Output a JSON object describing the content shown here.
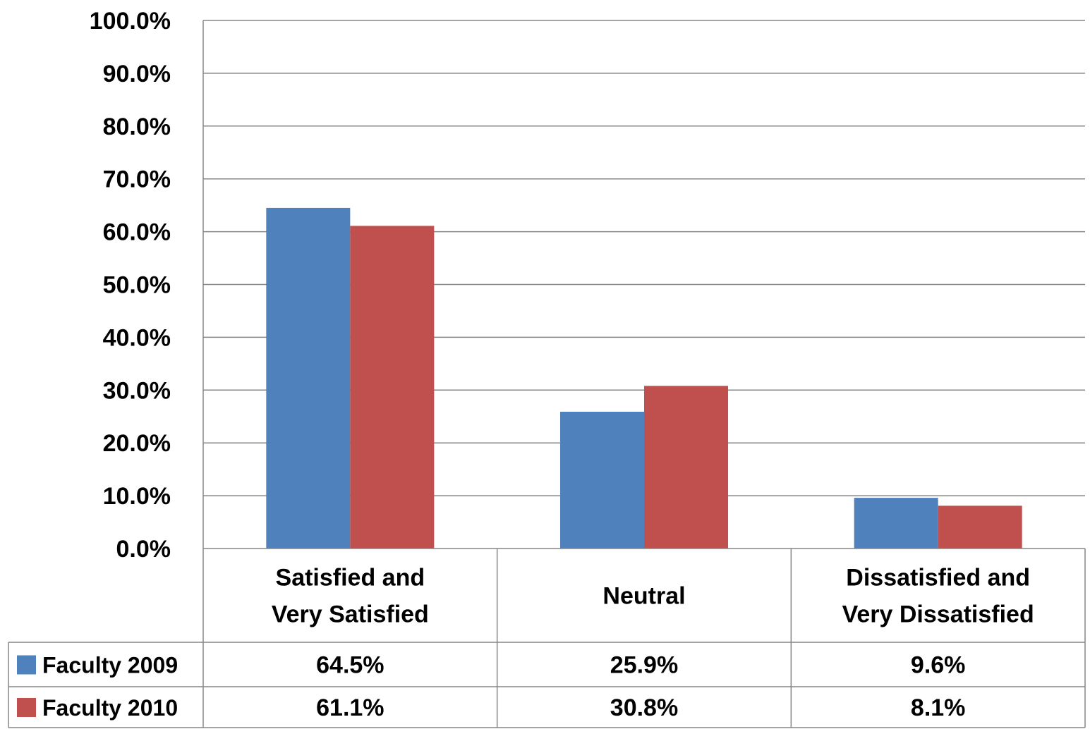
{
  "chart_data": {
    "type": "bar",
    "categories": [
      [
        "Satisfied and",
        "Very Satisfied"
      ],
      [
        "Neutral"
      ],
      [
        "Dissatisfied and",
        "Very Dissatisfied"
      ]
    ],
    "series": [
      {
        "name": "Faculty 2009",
        "color": "#4F81BD",
        "values": [
          64.5,
          25.9,
          9.6
        ],
        "labels": [
          "64.5%",
          "25.9%",
          "9.6%"
        ]
      },
      {
        "name": "Faculty 2010",
        "color": "#C0504D",
        "values": [
          61.1,
          30.8,
          8.1
        ],
        "labels": [
          "61.1%",
          "30.8%",
          "8.1%"
        ]
      }
    ],
    "ylim": [
      0,
      100
    ],
    "yticks": [
      0,
      10,
      20,
      30,
      40,
      50,
      60,
      70,
      80,
      90,
      100
    ],
    "ytick_labels": [
      "0.0%",
      "10.0%",
      "20.0%",
      "30.0%",
      "40.0%",
      "50.0%",
      "60.0%",
      "70.0%",
      "80.0%",
      "90.0%",
      "100.0%"
    ],
    "grid": true,
    "legend": "data-table",
    "gridline_color": "#868686",
    "axis_color": "#868686"
  }
}
